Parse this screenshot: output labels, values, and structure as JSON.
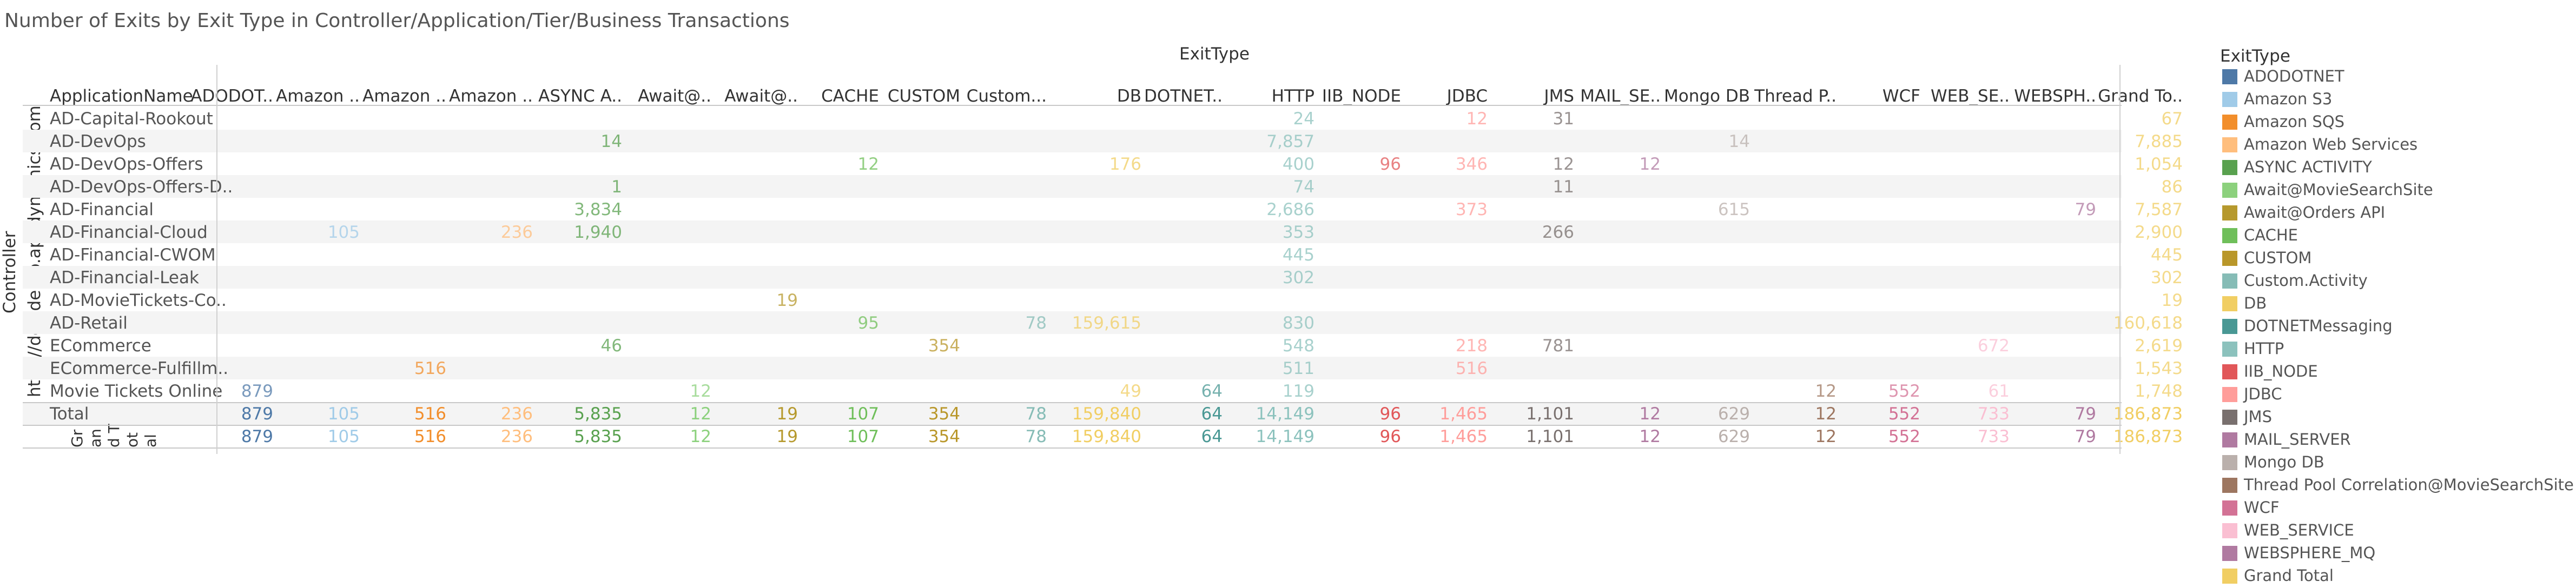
{
  "title": "Number of Exits by Exit Type in Controller/Application/Tier/Business Transactions",
  "exit_header": "ExitType",
  "app_header": "ApplicationName",
  "controller_label": "Controller",
  "controller_value": "http://dev.demo.appdynamics.com",
  "grand_total_fragments": [
    "Gr",
    "an",
    "d T",
    "ot",
    "al"
  ],
  "legend_title": "ExitType",
  "chart_data": {
    "type": "table",
    "columns": [
      {
        "label": "ADODOT..",
        "name": "ADODOTNET",
        "color": "#4e79a7"
      },
      {
        "label": "Amazon ..",
        "name": "Amazon S3",
        "color": "#a0cbe8"
      },
      {
        "label": "Amazon ..",
        "name": "Amazon SQS",
        "color": "#f28e2b"
      },
      {
        "label": "Amazon ..",
        "name": "Amazon Web Services",
        "color": "#ffbe7d"
      },
      {
        "label": "ASYNC A..",
        "name": "ASYNC ACTIVITY",
        "color": "#59a14f"
      },
      {
        "label": "Await@..",
        "name": "Await@MovieSearchSite",
        "color": "#8cd17d"
      },
      {
        "label": "Await@..",
        "name": "Await@Orders API",
        "color": "#b6992d"
      },
      {
        "label": "CACHE",
        "name": "CACHE",
        "color": "#6fbf5a"
      },
      {
        "label": "CUSTOM",
        "name": "CUSTOM",
        "color": "#b9972a"
      },
      {
        "label": "Custom...",
        "name": "Custom.Activity",
        "color": "#86bcb6"
      },
      {
        "label": "DB",
        "name": "DB",
        "color": "#f1ce63"
      },
      {
        "label": "DOTNET..",
        "name": "DOTNETMessaging",
        "color": "#499894"
      },
      {
        "label": "HTTP",
        "name": "HTTP",
        "color": "#8cc2bd"
      },
      {
        "label": "IIB_NODE",
        "name": "IIB_NODE",
        "color": "#e15759"
      },
      {
        "label": "JDBC",
        "name": "JDBC",
        "color": "#ff9d9a"
      },
      {
        "label": "JMS",
        "name": "JMS",
        "color": "#79706e"
      },
      {
        "label": "MAIL_SE..",
        "name": "MAIL_SERVER",
        "color": "#b07aa1"
      },
      {
        "label": "Mongo DB",
        "name": "Mongo DB",
        "color": "#bab0ac"
      },
      {
        "label": "Thread P..",
        "name": "Thread Pool Correlation@MovieSearchSite",
        "color": "#9d7660"
      },
      {
        "label": "WCF",
        "name": "WCF",
        "color": "#d37295"
      },
      {
        "label": "WEB_SE..",
        "name": "WEB_SERVICE",
        "color": "#fabfd2"
      },
      {
        "label": "WEBSPH..",
        "name": "WEBSPHERE_MQ",
        "color": "#b07aa1"
      },
      {
        "label": "Grand To..",
        "name": "Grand Total",
        "color": "#f1ce63"
      }
    ],
    "rows": [
      {
        "name": "AD-Capital-Rookout",
        "values": [
          null,
          null,
          null,
          null,
          null,
          null,
          null,
          null,
          null,
          null,
          null,
          null,
          "24",
          null,
          "12",
          "31",
          null,
          null,
          null,
          null,
          null,
          null,
          "67"
        ]
      },
      {
        "name": "AD-DevOps",
        "values": [
          null,
          null,
          null,
          null,
          "14",
          null,
          null,
          null,
          null,
          null,
          null,
          null,
          "7,857",
          null,
          null,
          null,
          null,
          "14",
          null,
          null,
          null,
          null,
          "7,885"
        ]
      },
      {
        "name": "AD-DevOps-Offers",
        "values": [
          null,
          null,
          null,
          null,
          null,
          null,
          null,
          "12",
          null,
          null,
          "176",
          null,
          "400",
          "96",
          "346",
          "12",
          "12",
          null,
          null,
          null,
          null,
          null,
          "1,054"
        ]
      },
      {
        "name": "AD-DevOps-Offers-D..",
        "values": [
          null,
          null,
          null,
          null,
          "1",
          null,
          null,
          null,
          null,
          null,
          null,
          null,
          "74",
          null,
          null,
          "11",
          null,
          null,
          null,
          null,
          null,
          null,
          "86"
        ]
      },
      {
        "name": "AD-Financial",
        "values": [
          null,
          null,
          null,
          null,
          "3,834",
          null,
          null,
          null,
          null,
          null,
          null,
          null,
          "2,686",
          null,
          "373",
          null,
          null,
          "615",
          null,
          null,
          null,
          "79",
          "7,587"
        ]
      },
      {
        "name": "AD-Financial-Cloud",
        "values": [
          null,
          "105",
          null,
          "236",
          "1,940",
          null,
          null,
          null,
          null,
          null,
          null,
          null,
          "353",
          null,
          null,
          "266",
          null,
          null,
          null,
          null,
          null,
          null,
          "2,900"
        ]
      },
      {
        "name": "AD-Financial-CWOM",
        "values": [
          null,
          null,
          null,
          null,
          null,
          null,
          null,
          null,
          null,
          null,
          null,
          null,
          "445",
          null,
          null,
          null,
          null,
          null,
          null,
          null,
          null,
          null,
          "445"
        ]
      },
      {
        "name": "AD-Financial-Leak",
        "values": [
          null,
          null,
          null,
          null,
          null,
          null,
          null,
          null,
          null,
          null,
          null,
          null,
          "302",
          null,
          null,
          null,
          null,
          null,
          null,
          null,
          null,
          null,
          "302"
        ]
      },
      {
        "name": "AD-MovieTickets-Co..",
        "values": [
          null,
          null,
          null,
          null,
          null,
          null,
          "19",
          null,
          null,
          null,
          null,
          null,
          null,
          null,
          null,
          null,
          null,
          null,
          null,
          null,
          null,
          null,
          "19"
        ]
      },
      {
        "name": "AD-Retail",
        "values": [
          null,
          null,
          null,
          null,
          null,
          null,
          null,
          "95",
          null,
          "78",
          "159,615",
          null,
          "830",
          null,
          null,
          null,
          null,
          null,
          null,
          null,
          null,
          null,
          "160,618"
        ]
      },
      {
        "name": "ECommerce",
        "values": [
          null,
          null,
          null,
          null,
          "46",
          null,
          null,
          null,
          "354",
          null,
          null,
          null,
          "548",
          null,
          "218",
          "781",
          null,
          null,
          null,
          null,
          "672",
          null,
          "2,619"
        ]
      },
      {
        "name": "ECommerce-Fulfillm..",
        "values": [
          null,
          null,
          "516",
          null,
          null,
          null,
          null,
          null,
          null,
          null,
          null,
          null,
          "511",
          null,
          "516",
          null,
          null,
          null,
          null,
          null,
          null,
          null,
          "1,543"
        ]
      },
      {
        "name": "Movie Tickets Online",
        "values": [
          "879",
          null,
          null,
          null,
          null,
          "12",
          null,
          null,
          null,
          null,
          "49",
          "64",
          "119",
          null,
          null,
          null,
          null,
          null,
          "12",
          "552",
          "61",
          null,
          "1,748"
        ]
      },
      {
        "name": "Total",
        "values": [
          "879",
          "105",
          "516",
          "236",
          "5,835",
          "12",
          "19",
          "107",
          "354",
          "78",
          "159,840",
          "64",
          "14,149",
          "96",
          "1,465",
          "1,101",
          "12",
          "629",
          "12",
          "552",
          "733",
          "79",
          "186,873"
        ]
      }
    ],
    "grand_total": [
      "879",
      "105",
      "516",
      "236",
      "5,835",
      "12",
      "19",
      "107",
      "354",
      "78",
      "159,840",
      "64",
      "14,149",
      "96",
      "1,465",
      "1,101",
      "12",
      "629",
      "12",
      "552",
      "733",
      "79",
      "186,873"
    ]
  }
}
